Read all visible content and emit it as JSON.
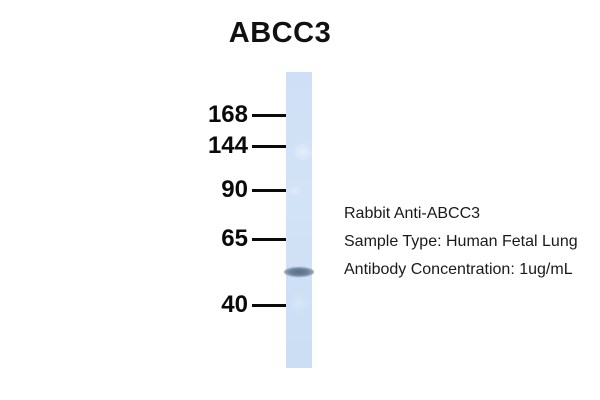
{
  "title": "ABCC3",
  "markers": [
    {
      "label": "168"
    },
    {
      "label": "144"
    },
    {
      "label": "90"
    },
    {
      "label": "65"
    },
    {
      "label": "40"
    }
  ],
  "annotations": {
    "line1": "Rabbit Anti-ABCC3",
    "line2": "Sample Type: Human Fetal Lung",
    "line3": "Antibody Concentration: 1ug/mL"
  },
  "blot": {
    "lane_count": 1,
    "band": {
      "count": 1,
      "position": "between 65 and 40 kDa markers, just below 65"
    }
  },
  "colors": {
    "background": "#ffffff",
    "lane": "#cfe0f5",
    "band": "#5c7187",
    "text": "#000000"
  }
}
